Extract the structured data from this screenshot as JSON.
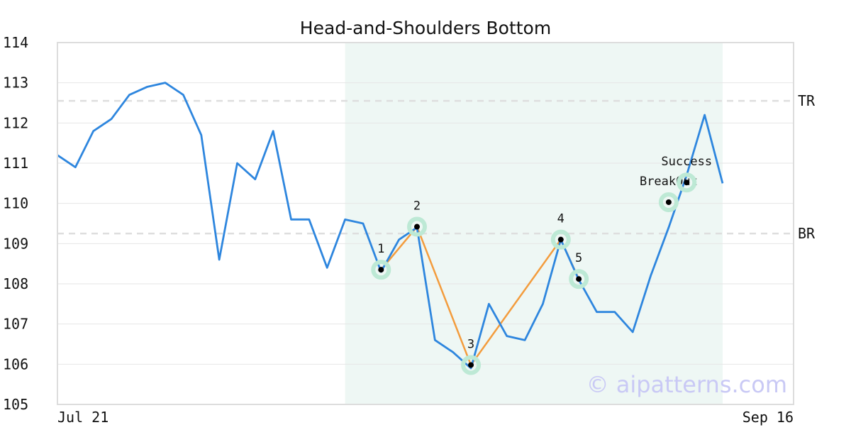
{
  "chart_data": {
    "type": "line",
    "title": "Head-and-Shoulders Bottom",
    "x_tick_labels": [
      "Jul 21",
      "Sep 16"
    ],
    "ylim": [
      105,
      114
    ],
    "y_ticks": [
      105,
      106,
      107,
      108,
      109,
      110,
      111,
      112,
      113,
      114
    ],
    "grid": true,
    "series": [
      {
        "values": [
          111.2,
          110.9,
          111.8,
          112.1,
          112.7,
          112.9,
          113.0,
          112.7,
          111.7,
          108.6,
          111.0,
          110.6,
          111.8,
          109.6,
          109.6,
          108.4,
          109.6,
          109.5,
          108.3,
          109.1,
          109.4,
          106.6,
          106.3,
          105.9,
          107.5,
          106.7,
          106.6,
          107.5,
          109.1,
          108.1,
          107.3,
          107.3,
          106.8,
          108.2,
          109.4,
          110.7,
          112.2,
          110.5
        ],
        "color": "#2e86de"
      }
    ],
    "pattern_shading": {
      "from_index": 16,
      "to_index": 37,
      "color": "#eef7f4"
    },
    "levels": [
      {
        "label": "TR",
        "value": 112.55
      },
      {
        "label": "BR",
        "value": 109.25
      }
    ],
    "pattern_points": [
      {
        "label": "1",
        "index": 18,
        "value": 108.35
      },
      {
        "label": "2",
        "index": 20,
        "value": 109.42
      },
      {
        "label": "3",
        "index": 23,
        "value": 105.98
      },
      {
        "label": "4",
        "index": 28,
        "value": 109.1
      },
      {
        "label": "5",
        "index": 29,
        "value": 108.12
      }
    ],
    "events": [
      {
        "label": "BreakOut",
        "index": 34,
        "value": 110.03
      },
      {
        "label": "Success",
        "index": 35,
        "value": 110.52
      }
    ],
    "pattern_line_color": "#f39c3d",
    "marker_ring_color": "#bde9d5",
    "watermark": "© aipatterns.com"
  }
}
